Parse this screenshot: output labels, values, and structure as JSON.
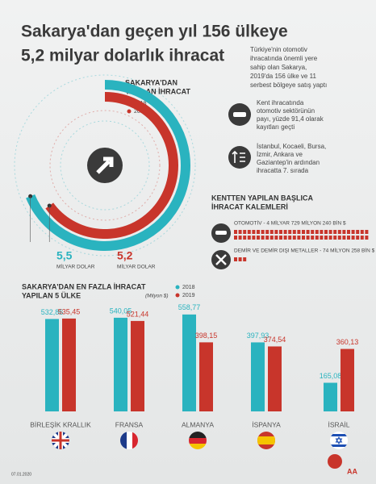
{
  "header": {
    "title": [
      "Sakarya'dan geçen yıl 156 ülkeye",
      "5,2 milyar dolarlık ihracat"
    ],
    "intro": [
      "Türkiye'nin otomotiv",
      "ihracatında önemli yere",
      "sahip olan Sakarya,",
      "2019'da 156 ülke ve 11",
      "serbest bölgeye satış yaptı"
    ]
  },
  "facts": [
    {
      "lines": [
        "Kent ihracatında",
        "otomotiv sektörünün",
        "payı, yüzde 91,4 olarak",
        "kayıtları geçti"
      ]
    },
    {
      "lines": [
        "İstanbul, Kocaeli, Bursa,",
        "İzmir, Ankara ve",
        "Gaziantep'in ardından",
        "ihracatta 7. sırada"
      ]
    }
  ],
  "items": {
    "title": [
      "KENTTEN YAPILAN BAŞLICA",
      "İHRACAT KALEMLERİ"
    ],
    "rows": [
      "OTOMOTİV - 4 MİLYAR 729 MİLYON 240 BİN $",
      "DEMİR VE DEMİR DIŞI METALLER - 74 MİLYON 258 BİN $"
    ]
  },
  "chart_data": [
    {
      "type": "radial",
      "title": [
        "SAKARYA'DAN",
        "YAPILAN İHRACAT"
      ],
      "unit": "MİLYAR DOLAR",
      "lim": [
        0,
        8
      ],
      "series": [
        {
          "name": "2018",
          "color": "#2ab3bf",
          "values": [
            5.5
          ],
          "value_labels": [
            "5,5"
          ]
        },
        {
          "name": "2019",
          "color": "#c8352b",
          "values": [
            5.2
          ],
          "value_labels": [
            "5,2"
          ]
        }
      ]
    },
    {
      "type": "bar",
      "title": [
        "SAKARYA'DAN EN FAZLA İHRACAT",
        "YAPILAN 5 ÜLKE"
      ],
      "unit": "(Milyon $)",
      "categories": [
        "BİRLEŞİK KRALLIK",
        "FRANSA",
        "ALMANYA",
        "İSPANYA",
        "İSRAİL"
      ],
      "ylim": [
        0,
        600
      ],
      "series": [
        {
          "name": "2018",
          "color": "#2ab3bf",
          "values": [
            532.86,
            540.05,
            558.77,
            397.93,
            165.08
          ],
          "value_labels": [
            "532,86",
            "540,05",
            "558,77",
            "397,93",
            "165,08"
          ]
        },
        {
          "name": "2019",
          "color": "#c8352b",
          "values": [
            535.45,
            521.44,
            398.15,
            374.54,
            360.13
          ],
          "value_labels": [
            "535,45",
            "521,44",
            "398,15",
            "374,54",
            "360,13"
          ]
        }
      ]
    }
  ],
  "footer": {
    "date": "07.01.2020"
  }
}
